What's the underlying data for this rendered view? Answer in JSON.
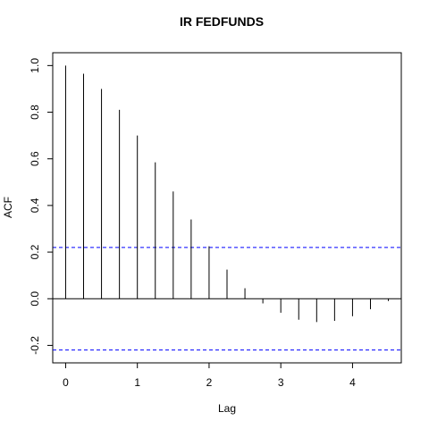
{
  "chart_data": {
    "type": "bar",
    "title": "IR FEDFUNDS",
    "xlabel": "Lag",
    "ylabel": "ACF",
    "xlim": [
      -0.18,
      4.68
    ],
    "ylim": [
      -0.275,
      1.055
    ],
    "x_ticks": [
      "0",
      "1",
      "2",
      "3",
      "4"
    ],
    "y_ticks": [
      "-0.2",
      "0.0",
      "0.2",
      "0.4",
      "0.6",
      "0.8",
      "1.0"
    ],
    "zero_line": true,
    "grid": false,
    "confidence_band": {
      "upper": 0.22,
      "lower": -0.22,
      "color": "#0000ff",
      "style": "dashed"
    },
    "series": [
      {
        "x": [
          0,
          0.25,
          0.5,
          0.75,
          1.0,
          1.25,
          1.5,
          1.75,
          2.0,
          2.25,
          2.5,
          2.75,
          3.0,
          3.25,
          3.5,
          3.75,
          4.0,
          4.25,
          4.5
        ],
        "values": [
          1.0,
          0.965,
          0.9,
          0.81,
          0.7,
          0.585,
          0.46,
          0.34,
          0.225,
          0.125,
          0.045,
          -0.02,
          -0.06,
          -0.09,
          -0.1,
          -0.095,
          -0.075,
          -0.045,
          -0.01
        ]
      }
    ]
  }
}
